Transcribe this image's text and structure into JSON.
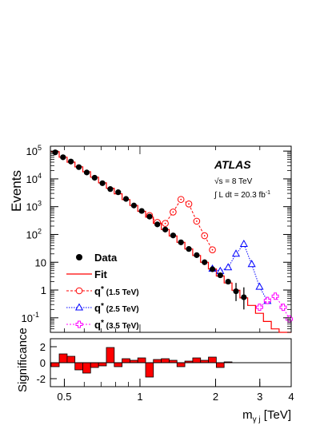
{
  "chart_data": [
    {
      "type": "scatter",
      "panel": "main",
      "x_scale": "log",
      "y_scale": "log",
      "xlim": [
        0.44,
        4.0
      ],
      "ylim": [
        0.03,
        150000
      ],
      "ylabel": "Events",
      "x_ticks": [
        {
          "value": 0.5,
          "label": "0.5"
        },
        {
          "value": 1,
          "label": "1"
        },
        {
          "value": 2,
          "label": "2"
        },
        {
          "value": 3,
          "label": "3"
        },
        {
          "value": 4,
          "label": "4"
        }
      ],
      "y_ticks": [
        {
          "value": 0.1,
          "base": "10",
          "exp": "-1"
        },
        {
          "value": 1,
          "base": "1",
          "exp": ""
        },
        {
          "value": 10,
          "base": "10",
          "exp": ""
        },
        {
          "value": 100,
          "base": "10",
          "exp": "2"
        },
        {
          "value": 1000,
          "base": "10",
          "exp": "3"
        },
        {
          "value": 10000,
          "base": "10",
          "exp": "4"
        },
        {
          "value": 100000,
          "base": "10",
          "exp": "5"
        }
      ],
      "bin_edges": [
        0.443,
        0.477,
        0.513,
        0.551,
        0.592,
        0.636,
        0.684,
        0.735,
        0.79,
        0.849,
        0.912,
        0.98,
        1.053,
        1.131,
        1.216,
        1.307,
        1.404,
        1.509,
        1.622,
        1.743,
        1.873,
        2.013,
        2.163,
        2.325,
        2.499,
        2.685,
        2.885,
        3.101,
        3.333,
        3.582,
        3.85,
        4.0
      ],
      "fit_values": [
        95000,
        60000,
        40000,
        27000,
        18000,
        11500,
        7200,
        4600,
        2900,
        1800,
        1100,
        680,
        420,
        250,
        150,
        88,
        52,
        30,
        17.5,
        10,
        5.7,
        3.2,
        1.8,
        0.98,
        0.52,
        0.28,
        0.145,
        0.074,
        0.04,
        0.02
      ],
      "data_points": [
        {
          "x": 0.46,
          "y": 90000
        },
        {
          "x": 0.494,
          "y": 60000
        },
        {
          "x": 0.531,
          "y": 42000
        },
        {
          "x": 0.571,
          "y": 26500
        },
        {
          "x": 0.614,
          "y": 17000
        },
        {
          "x": 0.66,
          "y": 11000
        },
        {
          "x": 0.709,
          "y": 7000
        },
        {
          "x": 0.762,
          "y": 4300
        },
        {
          "x": 0.819,
          "y": 3300
        },
        {
          "x": 0.88,
          "y": 1900
        },
        {
          "x": 0.946,
          "y": 1100
        },
        {
          "x": 1.016,
          "y": 700
        },
        {
          "x": 1.092,
          "y": 440
        },
        {
          "x": 1.173,
          "y": 230
        },
        {
          "x": 1.261,
          "y": 150
        },
        {
          "x": 1.355,
          "y": 92
        },
        {
          "x": 1.456,
          "y": 52
        },
        {
          "x": 1.565,
          "y": 30
        },
        {
          "x": 1.682,
          "y": 18
        },
        {
          "x": 1.808,
          "y": 10
        },
        {
          "x": 1.943,
          "y": 5.6
        },
        {
          "x": 2.088,
          "y": 3.4
        },
        {
          "x": 2.244,
          "y": 2.0
        },
        {
          "x": 2.412,
          "y": 0.9,
          "yerr_lo": 0.5,
          "yerr_hi": 0.9
        },
        {
          "x": 2.592,
          "y": 0.55,
          "yerr_lo": 0.35,
          "yerr_hi": 0.7
        }
      ],
      "series": [
        {
          "name": "Data",
          "kind": "points",
          "color": "#000000"
        },
        {
          "name": "Fit",
          "kind": "histogram",
          "color": "#ff0000"
        },
        {
          "name": "q*",
          "mass_label": "(1.5 TeV)",
          "kind": "signal",
          "color": "#ff0000",
          "marker": "open-circle",
          "x": [
            1.092,
            1.173,
            1.261,
            1.355,
            1.456,
            1.565,
            1.682,
            1.808,
            1.943
          ],
          "values": [
            480,
            270,
            250,
            640,
            1820,
            1250,
            300,
            90,
            28
          ]
        },
        {
          "name": "q*",
          "mass_label": "(2.5 TeV)",
          "kind": "signal",
          "color": "#0000ff",
          "marker": "open-triangle",
          "x": [
            1.943,
            2.088,
            2.244,
            2.412,
            2.592,
            2.785,
            2.993,
            3.217
          ],
          "values": [
            5.8,
            4.8,
            6.5,
            20,
            45,
            8.5,
            1.3,
            0.4
          ]
        },
        {
          "name": "q*",
          "mass_label": "(3.5 TeV)",
          "kind": "signal",
          "color": "#ff00ff",
          "marker": "open-cross",
          "x": [
            2.993,
            3.217,
            3.457,
            3.716,
            3.93
          ],
          "values": [
            0.24,
            0.42,
            0.6,
            0.24,
            0.09
          ]
        }
      ],
      "legend_position": "bottom-left",
      "annotations": {
        "experiment": "ATLAS",
        "energy_prefix": "√s = 8 TeV",
        "lumi_prefix": "∫ L dt = 20.3 fb",
        "lumi_exp": "-1"
      }
    },
    {
      "type": "bar",
      "panel": "significance",
      "ylabel": "Significance",
      "xlabel_base": "m",
      "xlabel_sub": "γ j",
      "xlabel_unit": "[TeV]",
      "ylim": [
        -3,
        3
      ],
      "y_ticks": [
        -2,
        0,
        2
      ],
      "fill_color": "#ff0000",
      "values": [
        -0.5,
        1.1,
        0.8,
        -0.9,
        -1.3,
        -0.6,
        -0.4,
        1.9,
        -0.5,
        0.5,
        0.3,
        0.6,
        -1.8,
        0.4,
        0.5,
        0.3,
        -0.5,
        0.2,
        0.6,
        0.3,
        0.7,
        -0.6,
        0.1,
        0.0,
        0.0,
        0.0,
        0.0,
        0.0,
        0.0,
        0.0
      ]
    }
  ]
}
